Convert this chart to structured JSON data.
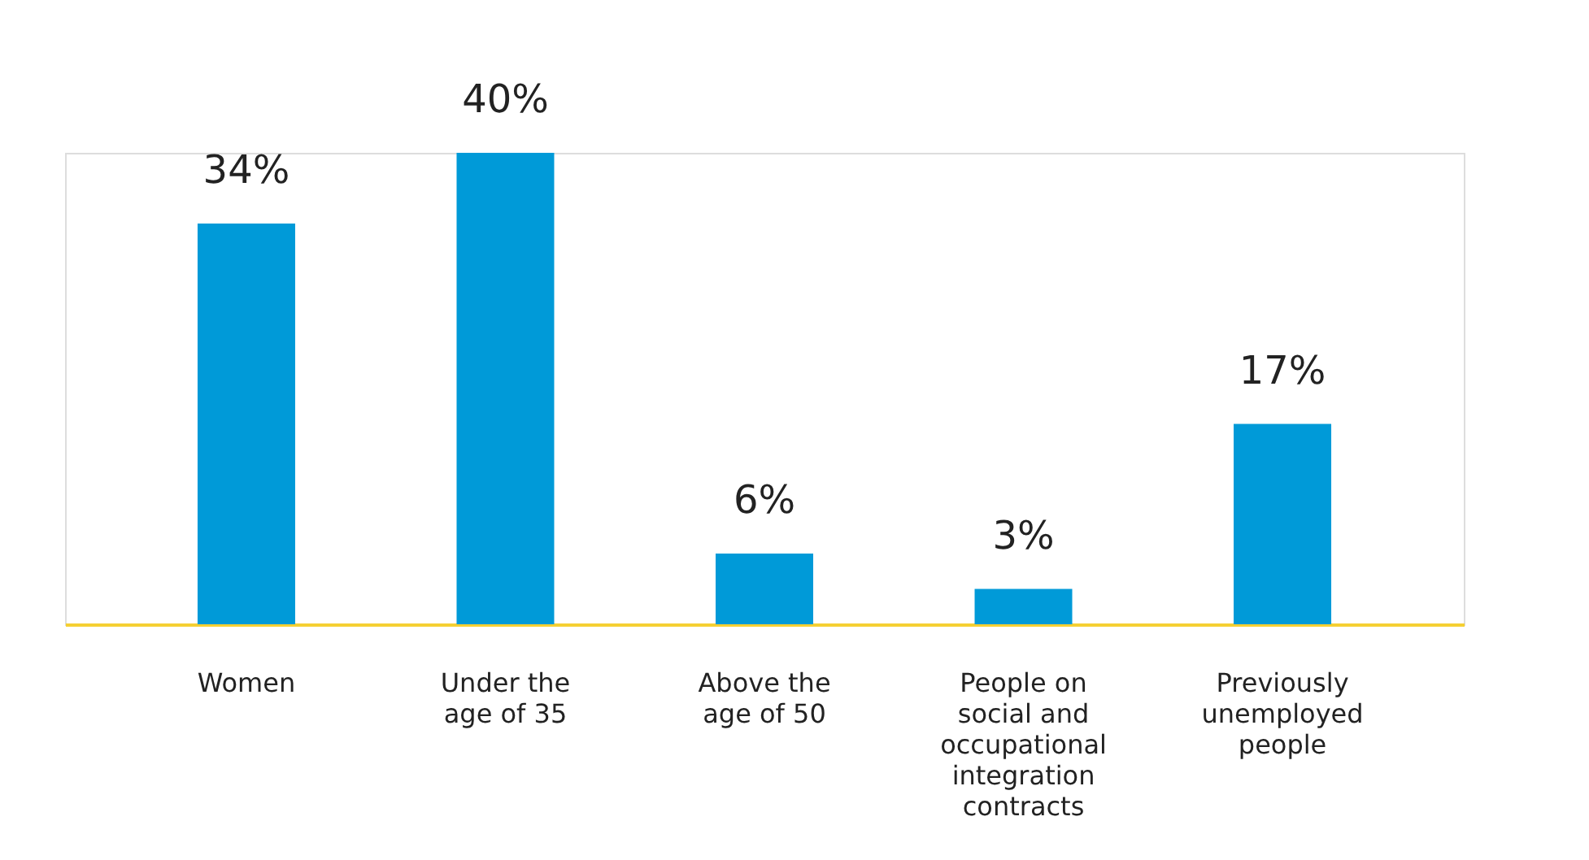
{
  "chart_data": {
    "type": "bar",
    "categories": [
      "Women",
      "Under the age of 35",
      "Above the age of 50",
      "People on social and occupational integration contracts",
      "Previously unemployed people"
    ],
    "values": [
      34,
      40,
      6,
      3,
      17
    ],
    "color": "#009ad8",
    "data_labels": true,
    "value_labels": [
      "34%",
      "40%",
      "6%",
      "3%",
      "17%"
    ]
  }
}
